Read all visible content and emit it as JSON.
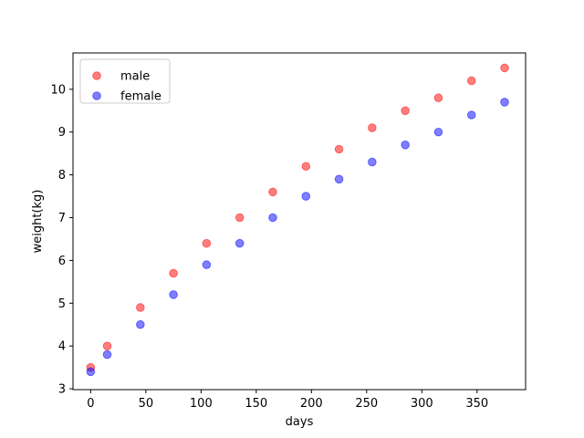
{
  "chart_data": {
    "type": "scatter",
    "title": "",
    "xlabel": "days",
    "ylabel": "weight(kg)",
    "xlim": [
      -16,
      394
    ],
    "ylim": [
      2.98,
      10.85
    ],
    "xticks": [
      0,
      50,
      100,
      150,
      200,
      250,
      300,
      350
    ],
    "yticks": [
      3,
      4,
      5,
      6,
      7,
      8,
      9,
      10
    ],
    "grid": false,
    "legend_position": "top-left",
    "series": [
      {
        "name": "male",
        "color": "#ff0000",
        "x": [
          0,
          15,
          45,
          75,
          105,
          135,
          165,
          195,
          225,
          255,
          285,
          315,
          345,
          375
        ],
        "y": [
          3.5,
          4.0,
          4.9,
          5.7,
          6.4,
          7.0,
          7.6,
          8.2,
          8.6,
          9.1,
          9.5,
          9.8,
          10.2,
          10.5
        ]
      },
      {
        "name": "female",
        "color": "#0000ff",
        "x": [
          0,
          15,
          45,
          75,
          105,
          135,
          165,
          195,
          225,
          255,
          285,
          315,
          345,
          375
        ],
        "y": [
          3.4,
          3.8,
          4.5,
          5.2,
          5.9,
          6.4,
          7.0,
          7.5,
          7.9,
          8.3,
          8.7,
          9.0,
          9.4,
          9.7
        ]
      }
    ]
  }
}
